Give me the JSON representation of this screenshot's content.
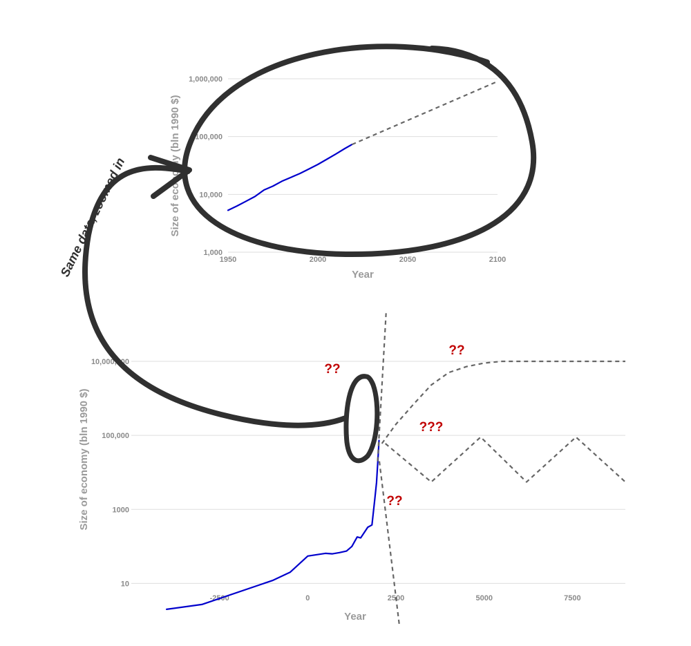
{
  "annotation": "Same data, zoomed in",
  "colors": {
    "history": "#0000cc",
    "projection": "#666666",
    "question": "#c00000",
    "marker": "#303030"
  },
  "chart_data": [
    {
      "id": "zoomed",
      "type": "line",
      "xlabel": "Year",
      "ylabel": "Size of economy (bln 1990 $)",
      "xlim": [
        1950,
        2100
      ],
      "ylim": [
        1000,
        1000000
      ],
      "y_scale": "log",
      "x_ticks": [
        1950,
        2000,
        2050,
        2100
      ],
      "x_tick_labels": [
        "1950",
        "2000",
        "2050",
        "2100"
      ],
      "y_ticks": [
        1000,
        10000,
        100000,
        1000000
      ],
      "y_tick_labels": [
        "1,000",
        "10,000",
        "100,000",
        "1,000,000"
      ],
      "grid": true,
      "series": [
        {
          "style": "solid",
          "color": "#0000cc",
          "x": [
            1950,
            1955,
            1960,
            1965,
            1970,
            1975,
            1980,
            1985,
            1990,
            1995,
            2000,
            2005,
            2010,
            2015,
            2019
          ],
          "y": [
            5300,
            6300,
            7600,
            9200,
            11900,
            13900,
            16900,
            19700,
            23000,
            27500,
            33000,
            40500,
            50000,
            62000,
            73000
          ]
        },
        {
          "style": "dashed",
          "color": "#666666",
          "x": [
            2019,
            2100
          ],
          "y": [
            73000,
            900000
          ]
        }
      ]
    },
    {
      "id": "long-run",
      "type": "line",
      "xlabel": "Year",
      "ylabel": "Size of economy (bln 1990 $)",
      "xlim": [
        -5000,
        9000
      ],
      "ylim": [
        1,
        10000000
      ],
      "y_scale": "log",
      "x_ticks": [
        -2500,
        0,
        2500,
        5000,
        7500
      ],
      "x_tick_labels": [
        "-2500",
        "0",
        "2500",
        "5000",
        "7500"
      ],
      "y_ticks": [
        10,
        1000,
        100000,
        10000000
      ],
      "y_tick_labels": [
        "10",
        "1000",
        "100,000",
        "10,000,000"
      ],
      "grid": true,
      "series": [
        {
          "style": "solid",
          "color": "#0000cc",
          "x": [
            -4000,
            -3000,
            -1000,
            -500,
            0,
            500,
            700,
            900,
            1100,
            1250,
            1400,
            1500,
            1700,
            1820,
            1900,
            1950,
            2000,
            2019
          ],
          "y": [
            2,
            2.7,
            12,
            20,
            55,
            65,
            63,
            68,
            75,
            100,
            180,
            170,
            330,
            380,
            1900,
            5300,
            33000,
            73000
          ]
        },
        {
          "style": "dashed",
          "color": "#666666",
          "x": [
            1980,
            2220
          ],
          "y": [
            20000,
            200000000
          ]
        },
        {
          "style": "dashed",
          "color": "#666666",
          "x": [
            2100,
            2500,
            3000,
            3500,
            4000,
            4500,
            5000,
            5500,
            9000
          ],
          "y": [
            60000,
            200000,
            700000,
            2300000,
            5000000,
            7200000,
            9000000,
            10000000,
            10000000
          ]
        },
        {
          "style": "dashed",
          "color": "#666666",
          "x": [
            2200,
            3500,
            4900,
            6200,
            7600,
            9000
          ],
          "y": [
            60000,
            5500,
            90000,
            5500,
            90000,
            5500
          ]
        },
        {
          "style": "dashed",
          "color": "#666666",
          "x": [
            2030,
            2600
          ],
          "y": [
            20000,
            0.7
          ]
        }
      ],
      "annotations": [
        "??",
        "??",
        "???",
        "??"
      ]
    }
  ]
}
